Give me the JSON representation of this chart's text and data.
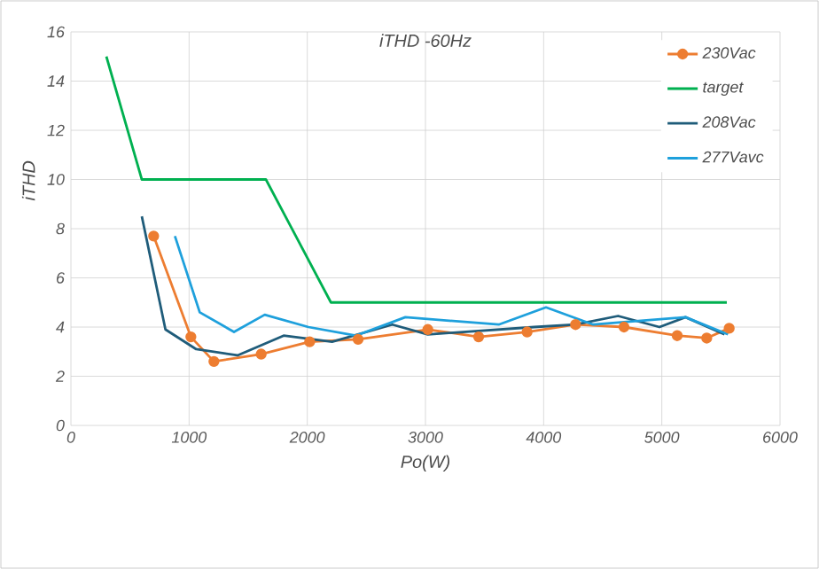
{
  "chart_data": {
    "type": "line",
    "title": "iTHD -60Hz",
    "xlabel": "Po(W)",
    "ylabel": "iTHD",
    "xlim": [
      0,
      6000
    ],
    "xticks": [
      0,
      1000,
      2000,
      3000,
      4000,
      5000,
      6000
    ],
    "ylim": [
      0,
      16
    ],
    "yticks": [
      0,
      2,
      4,
      6,
      8,
      10,
      12,
      14,
      16
    ],
    "grid": true,
    "legend": "top right",
    "line_style": "solid",
    "series": [
      {
        "name": "230Vac",
        "color": "#ed7d31",
        "marker": "circle",
        "x": [
          700,
          1015,
          1210,
          1610,
          2020,
          2430,
          3020,
          3450,
          3860,
          4270,
          4680,
          5130,
          5380,
          5570
        ],
        "values": [
          7.7,
          3.6,
          2.6,
          2.9,
          3.4,
          3.5,
          3.9,
          3.6,
          3.8,
          4.1,
          4.0,
          3.65,
          3.55,
          3.95
        ]
      },
      {
        "name": "target",
        "color": "#00b050",
        "marker": "none",
        "x": [
          300,
          600,
          1650,
          2200,
          5550
        ],
        "values": [
          15,
          10,
          10,
          5,
          5
        ]
      },
      {
        "name": "208Vac",
        "color": "#1f5c7a",
        "marker": "none",
        "x": [
          600,
          800,
          1060,
          1410,
          1800,
          2210,
          2720,
          3020,
          3920,
          4270,
          4630,
          4980,
          5200,
          5530
        ],
        "values": [
          8.5,
          3.9,
          3.1,
          2.85,
          3.65,
          3.4,
          4.1,
          3.7,
          4.0,
          4.1,
          4.45,
          4.0,
          4.4,
          3.7
        ]
      },
      {
        "name": "277Vavc",
        "color": "#1ea0dc",
        "marker": "none",
        "x": [
          880,
          1090,
          1380,
          1640,
          2010,
          2410,
          2830,
          3620,
          4020,
          4420,
          5200,
          5560
        ],
        "values": [
          7.7,
          4.6,
          3.8,
          4.5,
          4.0,
          3.65,
          4.4,
          4.1,
          4.8,
          4.1,
          4.4,
          3.7
        ]
      }
    ]
  }
}
